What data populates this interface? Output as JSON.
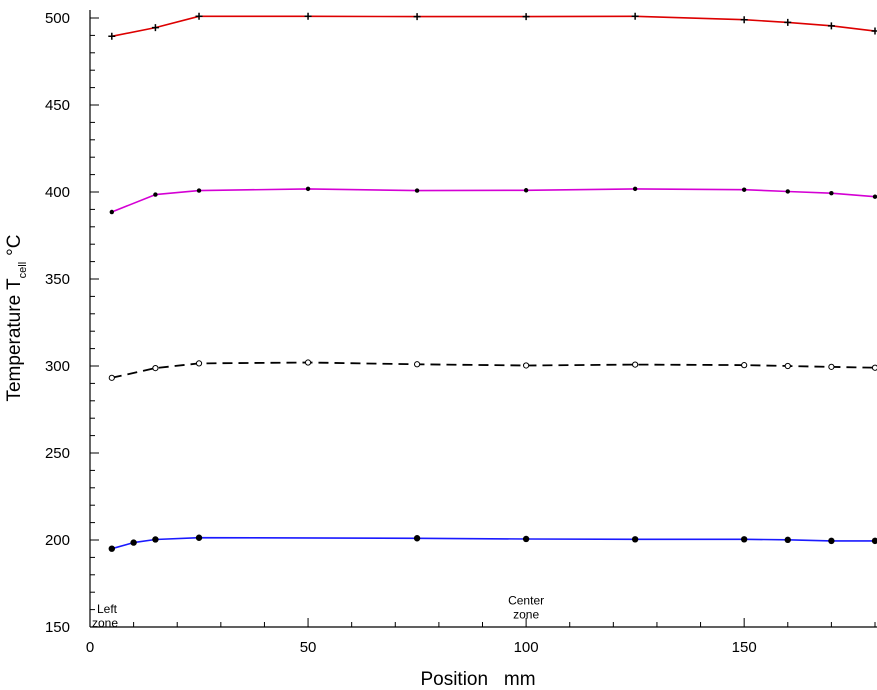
{
  "chart_data": {
    "type": "line",
    "xlabel": "Position   mm",
    "ylabel_main": "Temperature T",
    "ylabel_sub": "cell",
    "ylabel_unit": "°C",
    "xlim": [
      0,
      180
    ],
    "ylim": [
      150,
      500
    ],
    "x_ticks": [
      0,
      50,
      100,
      150
    ],
    "x_tick_labels": [
      "0",
      "50",
      "100",
      "150"
    ],
    "y_ticks": [
      150,
      200,
      250,
      300,
      350,
      400,
      450,
      500
    ],
    "y_tick_labels": [
      "150",
      "200",
      "250",
      "300",
      "350",
      "400",
      "450",
      "500"
    ],
    "grid": false,
    "annotations": [
      {
        "id": "left-zone",
        "lines": [
          "Left",
          "zone"
        ],
        "x": 4,
        "y": 158
      },
      {
        "id": "center-zone",
        "lines": [
          "Center",
          "zone"
        ],
        "x": 100,
        "y": 163
      }
    ],
    "series": [
      {
        "color": "#dd0000",
        "marker_color": "#000000",
        "marker": "plus",
        "dash": false,
        "x": [
          5,
          15,
          25,
          50,
          75,
          100,
          125,
          150,
          160,
          170,
          180
        ],
        "y": [
          489.5,
          494.5,
          501,
          501,
          500.8,
          500.8,
          501,
          499,
          497.5,
          495.5,
          492.5
        ]
      },
      {
        "color": "#d400d4",
        "marker_color": "#000000",
        "marker": "dot",
        "dash": false,
        "x": [
          5,
          15,
          25,
          50,
          75,
          100,
          125,
          150,
          160,
          170,
          180
        ],
        "y": [
          388.5,
          398.5,
          400.8,
          401.8,
          400.8,
          401,
          401.8,
          401.3,
          400.3,
          399.3,
          397.3
        ]
      },
      {
        "color": "#000000",
        "marker_color": "#000000",
        "marker": "open-circle",
        "dash": true,
        "x": [
          5,
          15,
          25,
          50,
          75,
          100,
          125,
          150,
          160,
          170,
          180
        ],
        "y": [
          293.2,
          298.8,
          301.5,
          302,
          301,
          300.3,
          300.8,
          300.5,
          300,
          299.5,
          299
        ]
      },
      {
        "color": "#1a1aff",
        "marker_color": "#000000",
        "marker": "filled-circle",
        "dash": false,
        "x": [
          5,
          10,
          15,
          25,
          75,
          100,
          125,
          150,
          160,
          170,
          180
        ],
        "y": [
          195,
          198.5,
          200.3,
          201.3,
          201,
          200.6,
          200.4,
          200.4,
          200.1,
          199.5,
          199.5
        ]
      }
    ]
  }
}
